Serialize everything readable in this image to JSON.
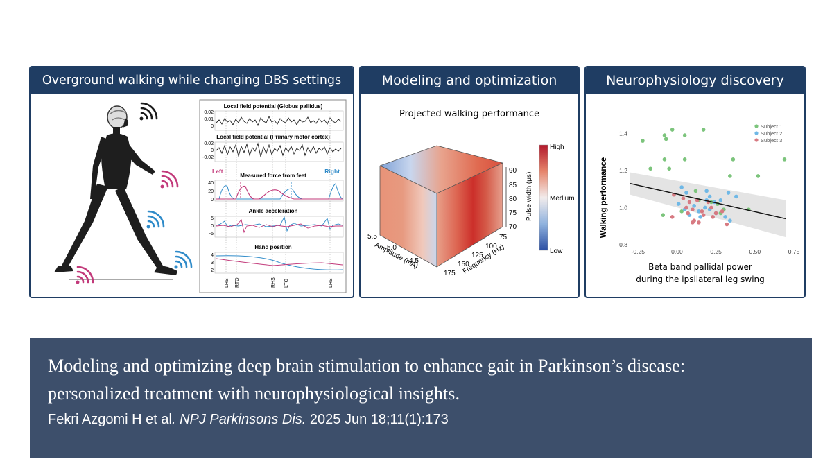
{
  "panels": {
    "walking": {
      "title": "Overground walking while changing DBS settings",
      "traces": [
        {
          "title": "Local field potential (Globus pallidus)",
          "ticks": [
            "0.02",
            "0.01",
            "0"
          ]
        },
        {
          "title": "Local field potential (Primary motor cortex)",
          "ticks": [
            "0.02",
            "0",
            "-0.02"
          ]
        },
        {
          "title": "Measured force from feet",
          "ticks": [
            "40",
            "20",
            "0"
          ],
          "left_label": "Left",
          "right_label": "Right"
        },
        {
          "title": "Ankle acceleration",
          "ticks": [
            "5",
            "0",
            "-5"
          ]
        },
        {
          "title": "Hand position",
          "ticks": [
            "4",
            "3",
            "2"
          ]
        }
      ],
      "events": [
        "LHS",
        "RTO",
        "RHS",
        "LTO",
        "LHS"
      ]
    },
    "modeling": {
      "title": "Modeling and optimization",
      "subtitle": "Projected walking performance",
      "amplitude_label": "Amplitude (mA)",
      "amplitude_ticks": [
        "5.5",
        "5.0",
        "4.5"
      ],
      "frequency_label": "Frequency (Hz)",
      "frequency_ticks": [
        "175",
        "150",
        "125",
        "100",
        "75"
      ],
      "pulse_label": "Pulse width (μs)",
      "pulse_ticks": [
        "90",
        "85",
        "80",
        "75",
        "70"
      ],
      "colorbar": {
        "high": "High",
        "medium": "Medium",
        "low": "Low"
      }
    },
    "discovery": {
      "title": "Neurophysiology discovery",
      "chart_data": {
        "type": "scatter",
        "xlabel_line1": "Beta band pallidal power",
        "xlabel_line2": "during the ipsilateral leg swing",
        "ylabel": "Walking performance",
        "xlim": [
          -0.3,
          0.75
        ],
        "ylim": [
          0.8,
          1.45
        ],
        "x_ticks": [
          "-0.25",
          "0.00",
          "0.25",
          "0.50",
          "0.75"
        ],
        "y_ticks": [
          "1.4",
          "1.2",
          "1.0",
          "0.8"
        ],
        "series": [
          {
            "name": "Subject 1",
            "color": "#7cc47c",
            "points": [
              [
                -0.22,
                1.36
              ],
              [
                -0.08,
                1.39
              ],
              [
                -0.07,
                1.37
              ],
              [
                -0.03,
                1.42
              ],
              [
                0.05,
                1.39
              ],
              [
                0.17,
                1.42
              ],
              [
                -0.17,
                1.21
              ],
              [
                -0.08,
                1.26
              ],
              [
                -0.05,
                1.21
              ],
              [
                0.05,
                1.26
              ],
              [
                0.36,
                1.26
              ],
              [
                0.34,
                1.17
              ],
              [
                0.52,
                1.17
              ],
              [
                0.69,
                1.26
              ],
              [
                -0.09,
                0.96
              ],
              [
                0.14,
                1.04
              ],
              [
                0.22,
                1.03
              ],
              [
                0.26,
                1.02
              ],
              [
                0.3,
                0.99
              ],
              [
                0.12,
                1.09
              ],
              [
                0.46,
                0.99
              ],
              [
                0.28,
                0.97
              ],
              [
                0.03,
                0.98
              ]
            ]
          },
          {
            "name": "Subject 2",
            "color": "#6fb8e6",
            "points": [
              [
                0.03,
                1.11
              ],
              [
                0.06,
                1.08
              ],
              [
                0.19,
                1.09
              ],
              [
                0.21,
                1.06
              ],
              [
                0.33,
                1.08
              ],
              [
                0.38,
                1.06
              ],
              [
                0.24,
                1.03
              ],
              [
                0.28,
                1.04
              ],
              [
                0.01,
                1.02
              ],
              [
                0.05,
                0.99
              ],
              [
                0.11,
                1.01
              ],
              [
                0.14,
                0.98
              ],
              [
                0.18,
                1.0
              ],
              [
                0.21,
                0.99
              ],
              [
                0.25,
                0.97
              ],
              [
                0.31,
                0.95
              ],
              [
                0.34,
                0.93
              ],
              [
                0.15,
                0.95
              ],
              [
                0.08,
                0.96
              ],
              [
                0.19,
                1.04
              ]
            ]
          },
          {
            "name": "Subject 3",
            "color": "#d77a82",
            "points": [
              [
                -0.02,
                1.07
              ],
              [
                0.04,
                1.05
              ],
              [
                0.08,
                1.03
              ],
              [
                0.13,
                1.04
              ],
              [
                0.2,
                1.03
              ],
              [
                0.06,
                1.0
              ],
              [
                0.1,
                0.99
              ],
              [
                0.16,
                0.98
              ],
              [
                0.22,
                1.0
              ],
              [
                0.25,
                0.97
              ],
              [
                0.29,
                0.98
              ],
              [
                0.11,
                0.93
              ],
              [
                0.14,
                0.92
              ],
              [
                0.32,
                0.91
              ],
              [
                -0.03,
                0.95
              ],
              [
                0.07,
                0.97
              ],
              [
                0.17,
                0.96
              ],
              [
                0.23,
                0.95
              ],
              [
                0.1,
                0.92
              ]
            ]
          }
        ],
        "fit": {
          "x": [
            -0.3,
            0.7
          ],
          "y": [
            1.13,
            0.94
          ],
          "ci_low": [
            1.07,
            0.84
          ],
          "ci_high": [
            1.19,
            1.04
          ]
        }
      }
    }
  },
  "citation": {
    "title_line1": "Modeling and optimizing deep brain stimulation to enhance gait in Parkinson’s disease:",
    "title_line2": "personalized treatment with neurophysiological insights.",
    "authors": "Fekri Azgomi H et al",
    "journal": ". NPJ Parkinsons Dis.",
    "details": " 2025 Jun 18;11(1):173"
  }
}
